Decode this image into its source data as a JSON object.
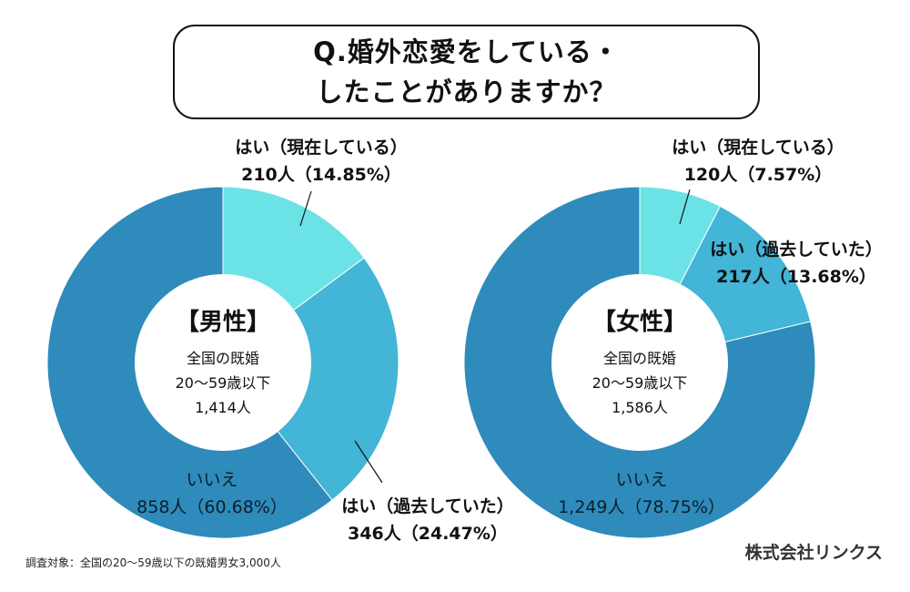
{
  "title": {
    "line1": "Q.婚外恋愛をしている・",
    "line2": "したことがありますか？"
  },
  "chart_data": [
    {
      "type": "pie",
      "title": "【男性】",
      "center_lines": [
        "全国の既婚",
        "20〜59歳以下",
        "1,414人"
      ],
      "slices": [
        {
          "name": "はい（現在している）",
          "count_label": "210人（14.85%）",
          "value": 14.85,
          "color": "#6be2e6"
        },
        {
          "name": "はい（過去していた）",
          "count_label": "346人（24.47%）",
          "value": 24.47,
          "color": "#43b5d6"
        },
        {
          "name": "いいえ",
          "count_label": "858人（60.68%）",
          "value": 60.68,
          "color": "#2e8bbb"
        }
      ]
    },
    {
      "type": "pie",
      "title": "【女性】",
      "center_lines": [
        "全国の既婚",
        "20〜59歳以下",
        "1,586人"
      ],
      "slices": [
        {
          "name": "はい（現在している）",
          "count_label": "120人（7.57%）",
          "value": 7.57,
          "color": "#6be2e6"
        },
        {
          "name": "はい（過去していた）",
          "count_label": "217人（13.68%）",
          "value": 13.68,
          "color": "#43b5d6"
        },
        {
          "name": "いいえ",
          "count_label": "1,249人（78.75%）",
          "value": 78.75,
          "color": "#2e8bbb"
        }
      ]
    }
  ],
  "footnote": "調査対象：全国の20～59歳以下の既婚男女3,000人",
  "company": "株式会社リンクス"
}
